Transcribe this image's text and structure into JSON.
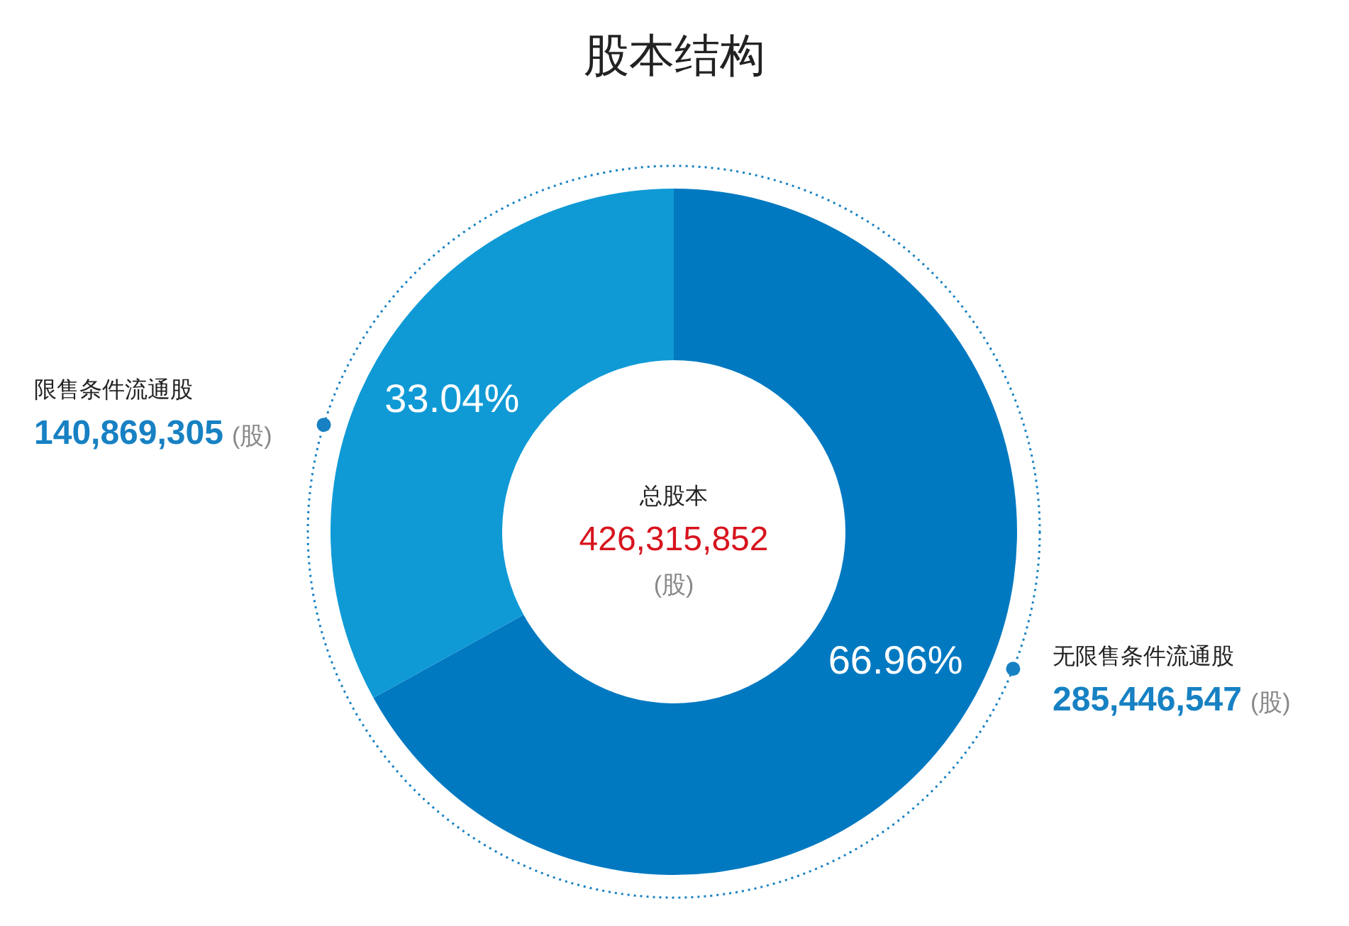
{
  "chart_data": {
    "type": "donut",
    "title": "股本结构",
    "categories": [
      "无限售条件流通股",
      "限售条件流通股"
    ],
    "values": [
      66.96,
      33.04
    ],
    "colors": [
      "#0079c1",
      "#0f9ad6"
    ],
    "value_labels": [
      "66.96%",
      "33.04%"
    ],
    "annotations": [
      "总股本",
      "426,315,852",
      "(股)",
      "285,446,547",
      "140,869,305"
    ],
    "legend": false
  }
}
